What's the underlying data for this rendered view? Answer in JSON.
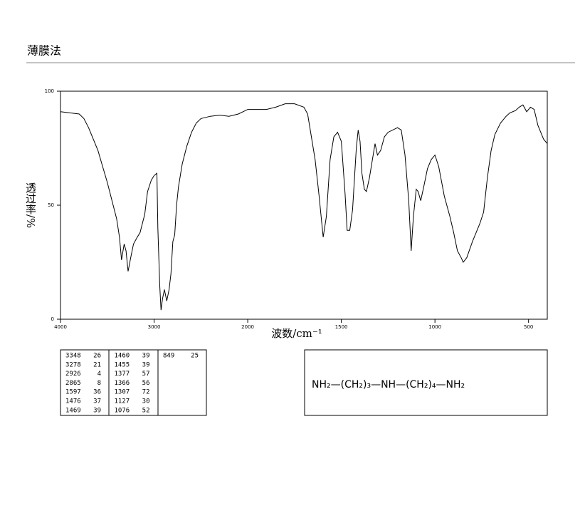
{
  "header": {
    "title": "薄膜法"
  },
  "chart_data": {
    "type": "line",
    "x_label": "波数/cm⁻¹",
    "y_label": "透过率/%",
    "x": [
      4000,
      3900,
      3800,
      3750,
      3700,
      3650,
      3600,
      3550,
      3500,
      3450,
      3400,
      3370,
      3348,
      3320,
      3300,
      3278,
      3250,
      3220,
      3180,
      3150,
      3100,
      3070,
      3030,
      3000,
      2970,
      2960,
      2940,
      2926,
      2910,
      2890,
      2865,
      2840,
      2820,
      2800,
      2780,
      2760,
      2740,
      2700,
      2650,
      2600,
      2550,
      2500,
      2400,
      2300,
      2200,
      2100,
      2000,
      1900,
      1850,
      1800,
      1750,
      1700,
      1680,
      1660,
      1640,
      1620,
      1597,
      1580,
      1560,
      1540,
      1520,
      1500,
      1480,
      1469,
      1460,
      1455,
      1440,
      1420,
      1410,
      1400,
      1390,
      1377,
      1366,
      1350,
      1320,
      1307,
      1290,
      1270,
      1250,
      1200,
      1180,
      1160,
      1140,
      1127,
      1115,
      1100,
      1090,
      1076,
      1060,
      1040,
      1020,
      1000,
      980,
      950,
      920,
      900,
      880,
      860,
      849,
      830,
      800,
      780,
      760,
      740,
      720,
      700,
      680,
      650,
      620,
      600,
      570,
      550,
      530,
      510,
      490,
      470,
      450,
      420,
      400
    ],
    "values": [
      91,
      90.5,
      90,
      88,
      84,
      79,
      74,
      67,
      60,
      52,
      44,
      36,
      26,
      33,
      30,
      21,
      27,
      33,
      36,
      38,
      46,
      56,
      61,
      63,
      64,
      40,
      15,
      4,
      9,
      13,
      8,
      13,
      20,
      34,
      37,
      50,
      58,
      68,
      76,
      82,
      86,
      88,
      89,
      89.5,
      89,
      90,
      92,
      92,
      93,
      94.5,
      94.5,
      93,
      90,
      80,
      70,
      55,
      36,
      45,
      70,
      80,
      82,
      78,
      55,
      39,
      39,
      39,
      48,
      75,
      83,
      78,
      64,
      57,
      56,
      62,
      77,
      72,
      74,
      80,
      82,
      84,
      83,
      72,
      52,
      30,
      45,
      57,
      56,
      52,
      58,
      66,
      70,
      72,
      67,
      54,
      45,
      38,
      30,
      27,
      25,
      27,
      34,
      38,
      42,
      47,
      62,
      74,
      81,
      86,
      89,
      90.5,
      91.5,
      93,
      94,
      91,
      93,
      92,
      85,
      79,
      77
    ],
    "color": "#000000",
    "xlim": [
      4000,
      400
    ],
    "xticks": [
      4000,
      3000,
      2000,
      1500,
      1000,
      500
    ],
    "ylim": [
      0,
      100
    ],
    "yticks": [
      0,
      50,
      100
    ]
  },
  "peak_table": [
    [
      3348,
      26
    ],
    [
      3278,
      21
    ],
    [
      2926,
      4
    ],
    [
      2865,
      8
    ],
    [
      1597,
      36
    ],
    [
      1476,
      37
    ],
    [
      1469,
      39
    ],
    [
      1460,
      39
    ],
    [
      1455,
      39
    ],
    [
      1377,
      57
    ],
    [
      1366,
      56
    ],
    [
      1307,
      72
    ],
    [
      1127,
      30
    ],
    [
      1076,
      52
    ],
    [
      849,
      25
    ]
  ],
  "formula": "NH₂—(CH₂)₃—NH—(CH₂)₄—NH₂"
}
